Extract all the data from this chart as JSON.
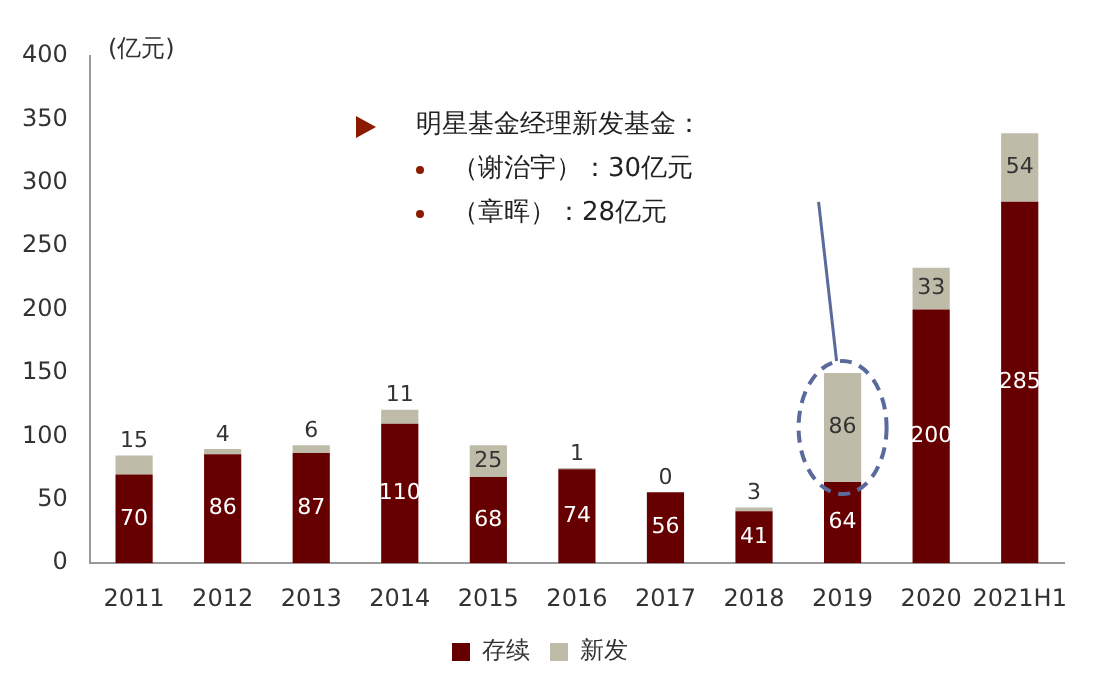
{
  "chart_data": {
    "type": "bar",
    "ylabel": "(亿元)",
    "categories": [
      "2011",
      "2012",
      "2013",
      "2014",
      "2015",
      "2016",
      "2017",
      "2018",
      "2019",
      "2020",
      "2021H1"
    ],
    "series": [
      {
        "name": "存续",
        "color": "#660000",
        "values": [
          70,
          86,
          87,
          110,
          68,
          74,
          56,
          41,
          64,
          200,
          285
        ]
      },
      {
        "name": "新发",
        "color": "#bebba8",
        "values": [
          15,
          4,
          6,
          11,
          25,
          1,
          0,
          3,
          86,
          33,
          54
        ]
      }
    ],
    "stacked": true,
    "ylim": [
      0,
      400
    ],
    "yticks": [
      0,
      50,
      100,
      150,
      200,
      250,
      300,
      350,
      400
    ],
    "grid": false,
    "legend": "bottom",
    "data_labels": true,
    "annotations": [
      "明星基金经理新发基金：",
      "（谢治宇）：30亿元",
      "（章晖）：28亿元"
    ]
  }
}
